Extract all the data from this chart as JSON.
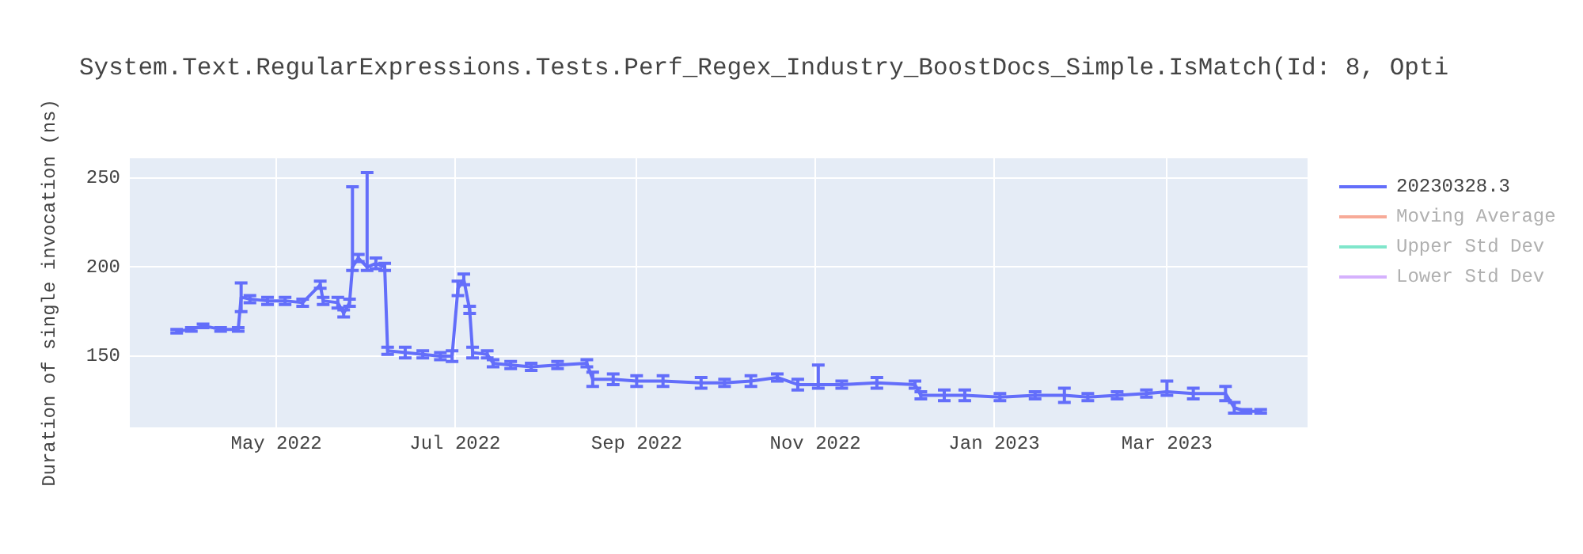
{
  "chart_data": {
    "type": "line",
    "title": "System.Text.RegularExpressions.Tests.Perf_Regex_Industry_BoostDocs_Simple.IsMatch(Id: 8, Opti",
    "ylabel": "Duration of single invocation (ns)",
    "x": [
      "2022-03-28",
      "2022-04-02",
      "2022-04-06",
      "2022-04-12",
      "2022-04-18",
      "2022-04-19",
      "2022-04-22",
      "2022-04-28",
      "2022-05-04",
      "2022-05-10",
      "2022-05-16",
      "2022-05-17",
      "2022-05-22",
      "2022-05-24",
      "2022-05-26",
      "2022-05-27",
      "2022-05-29",
      "2022-06-01",
      "2022-06-04",
      "2022-06-07",
      "2022-06-08",
      "2022-06-14",
      "2022-06-20",
      "2022-06-26",
      "2022-06-30",
      "2022-07-02",
      "2022-07-04",
      "2022-07-06",
      "2022-07-07",
      "2022-07-12",
      "2022-07-14",
      "2022-07-20",
      "2022-07-27",
      "2022-08-05",
      "2022-08-15",
      "2022-08-17",
      "2022-08-24",
      "2022-09-01",
      "2022-09-10",
      "2022-09-23",
      "2022-10-01",
      "2022-10-10",
      "2022-10-19",
      "2022-10-26",
      "2022-11-02",
      "2022-11-10",
      "2022-11-22",
      "2022-12-05",
      "2022-12-07",
      "2022-12-15",
      "2022-12-22",
      "2023-01-03",
      "2023-01-15",
      "2023-01-25",
      "2023-02-02",
      "2023-02-12",
      "2023-02-22",
      "2023-03-01",
      "2023-03-10",
      "2023-03-21",
      "2023-03-24",
      "2023-03-28",
      "2023-04-02"
    ],
    "series": [
      {
        "name": "20230328.3",
        "color": "#636efa",
        "values": [
          164,
          165,
          167,
          165,
          165,
          183,
          182,
          181,
          181,
          180,
          190,
          181,
          180,
          174,
          180,
          200,
          205,
          200,
          202,
          200,
          153,
          152,
          151,
          150,
          150,
          188,
          193,
          176,
          152,
          151,
          146,
          145,
          144,
          145,
          146,
          137,
          137,
          136,
          136,
          135,
          135,
          136,
          138,
          134,
          134,
          134,
          135,
          134,
          128,
          128,
          128,
          127,
          128,
          128,
          127,
          128,
          129,
          130,
          129,
          129,
          121,
          119,
          119
        ],
        "errors": [
          1,
          1,
          1,
          1,
          1,
          8,
          2,
          2,
          2,
          2,
          2,
          2,
          3,
          2,
          2,
          [
            198,
            245
          ],
          2,
          [
            198,
            253
          ],
          3,
          2,
          2,
          3,
          2,
          2,
          3,
          4,
          3,
          2,
          3,
          2,
          2,
          2,
          2,
          2,
          2,
          4,
          3,
          3,
          3,
          3,
          2,
          3,
          2,
          3,
          [
            132,
            145
          ],
          2,
          3,
          2,
          2,
          3,
          3,
          2,
          2,
          4,
          2,
          2,
          2,
          [
            128,
            136
          ],
          3,
          4,
          3,
          1,
          1
        ]
      },
      {
        "name": "Moving Average",
        "color": "#f7aa98",
        "values": [
          null,
          null,
          null,
          null,
          null,
          null,
          null,
          null,
          null,
          null,
          null,
          null,
          null,
          null,
          null,
          null,
          null,
          null,
          null,
          null,
          null,
          null,
          null,
          null,
          null,
          null,
          null,
          null,
          null,
          null,
          null,
          null,
          null,
          null,
          null,
          null,
          null,
          null,
          null,
          null,
          null,
          null,
          null,
          null,
          null,
          null,
          null,
          null,
          null,
          null,
          null,
          null,
          null,
          null,
          null,
          null,
          null,
          null,
          null,
          null,
          null,
          null,
          null
        ]
      },
      {
        "name": "Upper Std Dev",
        "color": "#80e6cb",
        "values": [
          null,
          null,
          null,
          null,
          null,
          null,
          null,
          null,
          null,
          null,
          null,
          null,
          null,
          null,
          null,
          null,
          null,
          null,
          null,
          null,
          null,
          null,
          null,
          null,
          null,
          null,
          null,
          null,
          null,
          null,
          null,
          null,
          null,
          null,
          null,
          null,
          null,
          null,
          null,
          null,
          null,
          null,
          null,
          null,
          null,
          null,
          null,
          null,
          null,
          null,
          null,
          null,
          null,
          null,
          null,
          null,
          null,
          null,
          null,
          null,
          null,
          null,
          null
        ]
      },
      {
        "name": "Lower Std Dev",
        "color": "#d5b1fd",
        "values": [
          null,
          null,
          null,
          null,
          null,
          null,
          null,
          null,
          null,
          null,
          null,
          null,
          null,
          null,
          null,
          null,
          null,
          null,
          null,
          null,
          null,
          null,
          null,
          null,
          null,
          null,
          null,
          null,
          null,
          null,
          null,
          null,
          null,
          null,
          null,
          null,
          null,
          null,
          null,
          null,
          null,
          null,
          null,
          null,
          null,
          null,
          null,
          null,
          null,
          null,
          null,
          null,
          null,
          null,
          null,
          null,
          null,
          null,
          null,
          null,
          null,
          null,
          null
        ]
      }
    ],
    "xlim": [
      "2022-03-12",
      "2023-04-18"
    ],
    "xticks": [
      {
        "value": "2022-05-01",
        "label": "May 2022"
      },
      {
        "value": "2022-07-01",
        "label": "Jul 2022"
      },
      {
        "value": "2022-09-01",
        "label": "Sep 2022"
      },
      {
        "value": "2022-11-01",
        "label": "Nov 2022"
      },
      {
        "value": "2023-01-01",
        "label": "Jan 2023"
      },
      {
        "value": "2023-03-01",
        "label": "Mar 2023"
      }
    ],
    "ylim": [
      110,
      261
    ],
    "yticks": [
      150,
      200,
      250
    ],
    "grid": true,
    "legend": "right"
  }
}
